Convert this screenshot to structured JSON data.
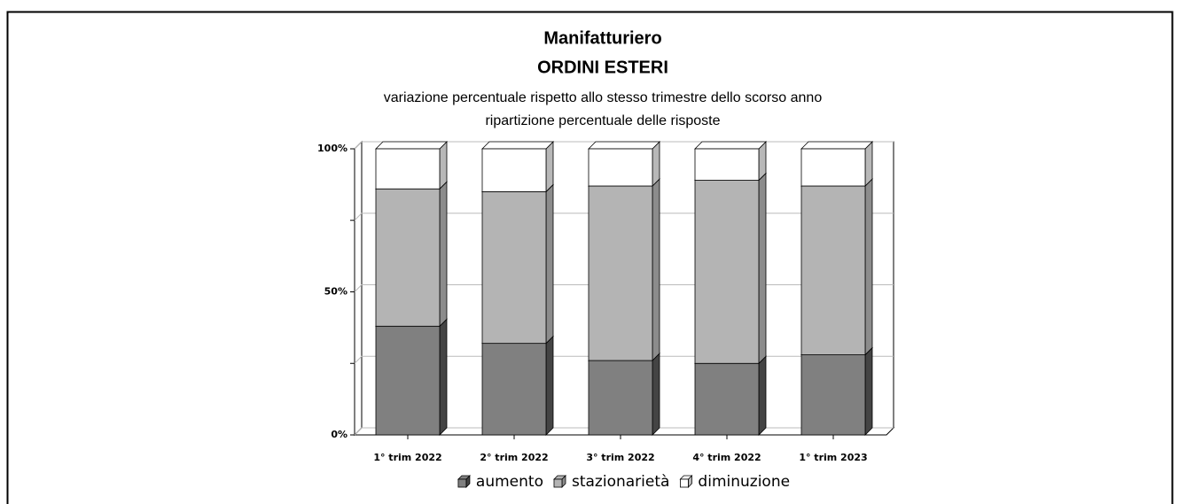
{
  "chart_data": {
    "type": "stacked_bar_3d",
    "title": "Manifatturiero",
    "subtitle": "ORDINI ESTERI",
    "description": [
      "variazione percentuale rispetto allo stesso trimestre dello scorso anno",
      "ripartizione percentuale delle risposte"
    ],
    "categories": [
      "1° trim 2022",
      "2° trim 2022",
      "3° trim 2022",
      "4° trim 2022",
      "1° trim 2023"
    ],
    "series": [
      {
        "name": "aumento",
        "color": "#808080",
        "side": "#444444",
        "values": [
          38,
          32,
          26,
          25,
          28
        ]
      },
      {
        "name": "stazionarietà",
        "color": "#b4b4b4",
        "side": "#8c8c8c",
        "values": [
          48,
          53,
          61,
          64,
          59
        ]
      },
      {
        "name": "diminuzione",
        "color": "#ffffff",
        "side": "#b8b8b8",
        "values": [
          14,
          15,
          13,
          11,
          13
        ]
      }
    ],
    "ylim": [
      0,
      100
    ],
    "yticks": [
      {
        "value": 0,
        "label": "0%"
      },
      {
        "value": 50,
        "label": "50%"
      },
      {
        "value": 100,
        "label": "100%"
      }
    ],
    "minor_yticks": [
      25,
      75
    ],
    "grid": true
  }
}
